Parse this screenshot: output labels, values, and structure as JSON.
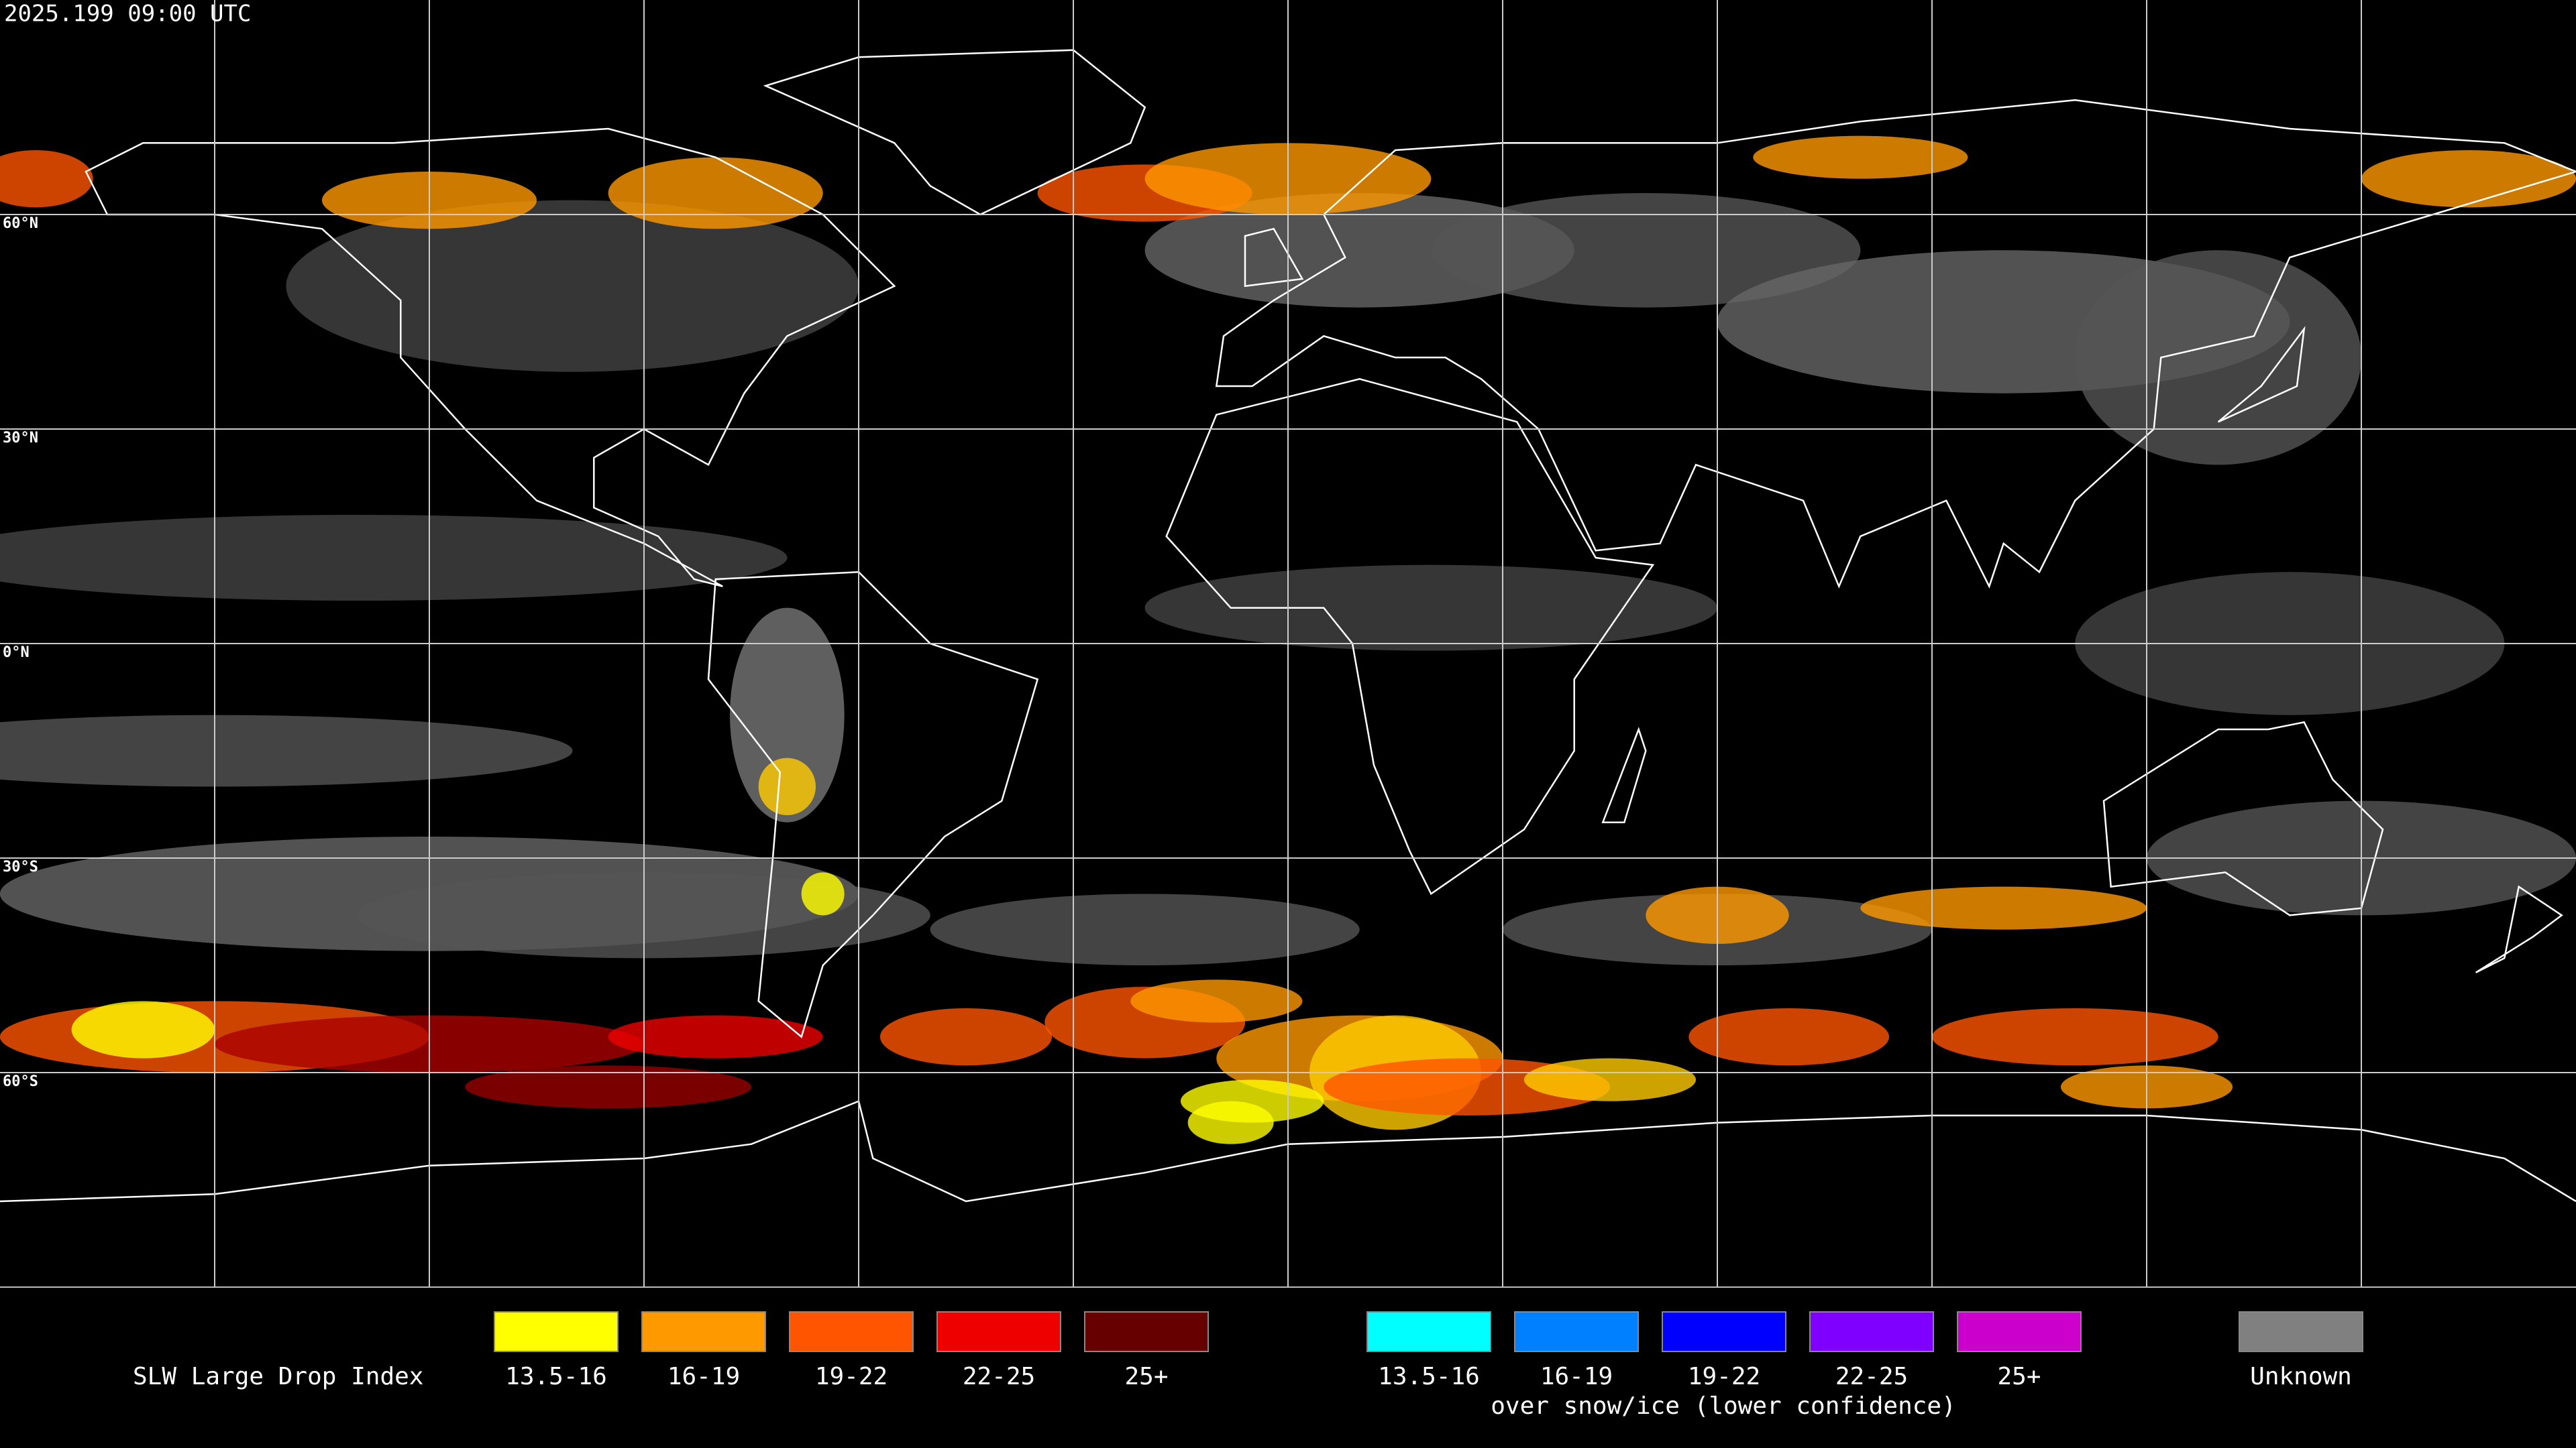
{
  "header": {
    "timestamp": "2025.199 09:00 UTC"
  },
  "map": {
    "lat_labels": [
      "60°N",
      "30°N",
      "0°N",
      "30°S",
      "60°S"
    ]
  },
  "legend": {
    "title": "SLW Large Drop Index",
    "items": [
      {
        "label": "13.5-16",
        "color": "#ffff00"
      },
      {
        "label": "16-19",
        "color": "#ff9900"
      },
      {
        "label": "19-22",
        "color": "#ff5500"
      },
      {
        "label": "22-25",
        "color": "#ee0000"
      },
      {
        "label": "25+",
        "color": "#660000"
      }
    ],
    "snow_items": [
      {
        "label": "13.5-16",
        "color": "#00ffff"
      },
      {
        "label": "16-19",
        "color": "#0080ff"
      },
      {
        "label": "19-22",
        "color": "#0000ff"
      },
      {
        "label": "22-25",
        "color": "#7f00ff"
      },
      {
        "label": "25+",
        "color": "#cc00cc"
      }
    ],
    "snow_caption": "over snow/ice (lower confidence)",
    "unknown": {
      "label": "Unknown",
      "color": "#808080"
    }
  }
}
